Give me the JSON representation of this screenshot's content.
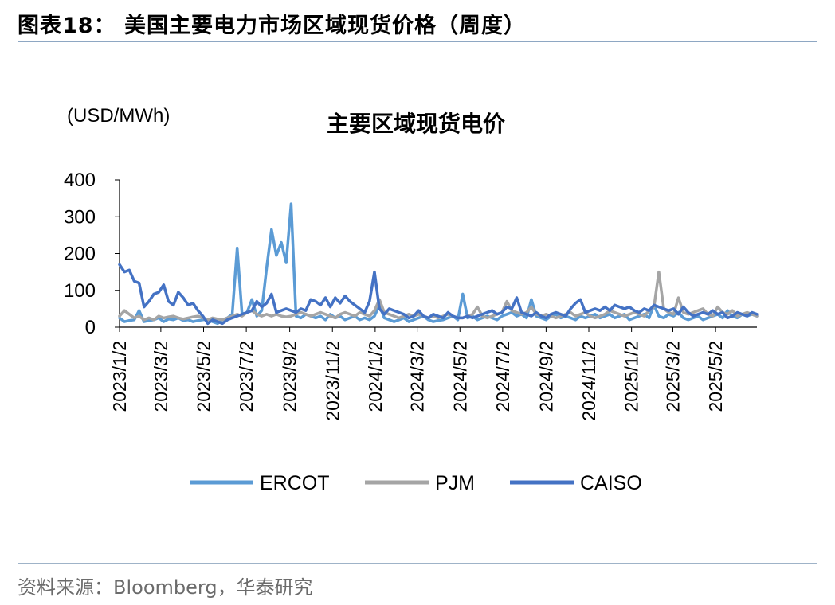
{
  "figure_title": "图表18：  美国主要电力市场区域现货价格（周度）",
  "source": "资料来源：Bloomberg，华泰研究",
  "colors": {
    "ERCOT": "#5b9bd5",
    "PJM": "#a5a5a5",
    "CAISO": "#4472c4"
  },
  "chart_data": {
    "type": "line",
    "title": "主要区域现货电价",
    "unit_label": "(USD/MWh)",
    "ylim": [
      0,
      400
    ],
    "yticks": [
      0,
      100,
      200,
      300,
      400
    ],
    "xlim": [
      "2023/1/2",
      "2025/6/30"
    ],
    "xticks": [
      "2023/1/2",
      "2023/3/2",
      "2023/5/2",
      "2023/7/2",
      "2023/9/2",
      "2023/11/2",
      "2024/1/2",
      "2024/3/2",
      "2024/5/2",
      "2024/7/2",
      "2024/9/2",
      "2024/11/2",
      "2025/1/2",
      "2025/3/2",
      "2025/5/2"
    ],
    "grid": false,
    "legend_position": "bottom",
    "x": [
      "2023/1/2",
      "2023/1/9",
      "2023/1/16",
      "2023/1/23",
      "2023/1/30",
      "2023/2/6",
      "2023/2/13",
      "2023/2/20",
      "2023/2/27",
      "2023/3/6",
      "2023/3/13",
      "2023/3/20",
      "2023/3/27",
      "2023/4/3",
      "2023/4/10",
      "2023/4/17",
      "2023/4/24",
      "2023/5/1",
      "2023/5/8",
      "2023/5/15",
      "2023/5/22",
      "2023/5/29",
      "2023/6/5",
      "2023/6/12",
      "2023/6/19",
      "2023/6/26",
      "2023/7/3",
      "2023/7/10",
      "2023/7/17",
      "2023/7/24",
      "2023/7/31",
      "2023/8/7",
      "2023/8/14",
      "2023/8/21",
      "2023/8/28",
      "2023/9/4",
      "2023/9/11",
      "2023/9/18",
      "2023/9/25",
      "2023/10/2",
      "2023/10/9",
      "2023/10/16",
      "2023/10/23",
      "2023/10/30",
      "2023/11/6",
      "2023/11/13",
      "2023/11/20",
      "2023/11/27",
      "2023/12/4",
      "2023/12/11",
      "2023/12/18",
      "2023/12/25",
      "2024/1/1",
      "2024/1/8",
      "2024/1/15",
      "2024/1/22",
      "2024/1/29",
      "2024/2/5",
      "2024/2/12",
      "2024/2/19",
      "2024/2/26",
      "2024/3/4",
      "2024/3/11",
      "2024/3/18",
      "2024/3/25",
      "2024/4/1",
      "2024/4/8",
      "2024/4/15",
      "2024/4/22",
      "2024/4/29",
      "2024/5/6",
      "2024/5/13",
      "2024/5/20",
      "2024/5/27",
      "2024/6/3",
      "2024/6/10",
      "2024/6/17",
      "2024/6/24",
      "2024/7/1",
      "2024/7/8",
      "2024/7/15",
      "2024/7/22",
      "2024/7/29",
      "2024/8/5",
      "2024/8/12",
      "2024/8/19",
      "2024/8/26",
      "2024/9/2",
      "2024/9/9",
      "2024/9/16",
      "2024/9/23",
      "2024/9/30",
      "2024/10/7",
      "2024/10/14",
      "2024/10/21",
      "2024/10/28",
      "2024/11/4",
      "2024/11/11",
      "2024/11/18",
      "2024/11/25",
      "2024/12/2",
      "2024/12/9",
      "2024/12/16",
      "2024/12/23",
      "2024/12/30",
      "2025/1/6",
      "2025/1/13",
      "2025/1/20",
      "2025/1/27",
      "2025/2/3",
      "2025/2/10",
      "2025/2/17",
      "2025/2/24",
      "2025/3/3",
      "2025/3/10",
      "2025/3/17",
      "2025/3/24",
      "2025/3/31",
      "2025/4/7",
      "2025/4/14",
      "2025/4/21",
      "2025/4/28",
      "2025/5/5",
      "2025/5/12",
      "2025/5/19",
      "2025/5/26",
      "2025/6/2",
      "2025/6/9",
      "2025/6/16",
      "2025/6/23",
      "2025/6/30"
    ],
    "series": [
      {
        "name": "ERCOT",
        "values": [
          25,
          15,
          18,
          20,
          45,
          15,
          18,
          20,
          25,
          15,
          22,
          20,
          25,
          18,
          20,
          15,
          18,
          20,
          22,
          15,
          10,
          20,
          25,
          35,
          215,
          35,
          40,
          75,
          30,
          45,
          160,
          265,
          195,
          230,
          175,
          335,
          30,
          25,
          35,
          30,
          25,
          30,
          20,
          35,
          25,
          30,
          20,
          25,
          30,
          20,
          25,
          20,
          30,
          60,
          25,
          20,
          15,
          20,
          25,
          15,
          20,
          25,
          30,
          20,
          15,
          18,
          20,
          25,
          30,
          20,
          90,
          25,
          30,
          20,
          25,
          30,
          25,
          20,
          30,
          35,
          40,
          30,
          35,
          25,
          75,
          30,
          25,
          20,
          30,
          35,
          25,
          30,
          25,
          20,
          30,
          25,
          30,
          35,
          25,
          30,
          35,
          25,
          30,
          35,
          20,
          25,
          30,
          35,
          25,
          60,
          30,
          25,
          35,
          30,
          40,
          25,
          20,
          25,
          30,
          20,
          25,
          30,
          35,
          25,
          45,
          30,
          25,
          35,
          30,
          35,
          30
        ]
      },
      {
        "name": "PJM",
        "values": [
          30,
          45,
          35,
          25,
          30,
          20,
          25,
          20,
          30,
          25,
          28,
          30,
          25,
          22,
          25,
          28,
          30,
          25,
          20,
          25,
          22,
          20,
          25,
          30,
          35,
          30,
          40,
          45,
          35,
          30,
          35,
          30,
          35,
          30,
          28,
          30,
          35,
          40,
          35,
          30,
          35,
          40,
          35,
          30,
          25,
          35,
          40,
          35,
          30,
          40,
          35,
          30,
          45,
          75,
          40,
          35,
          30,
          25,
          30,
          35,
          30,
          35,
          30,
          25,
          30,
          25,
          30,
          35,
          30,
          25,
          25,
          30,
          35,
          55,
          30,
          25,
          30,
          35,
          40,
          70,
          45,
          40,
          35,
          40,
          55,
          35,
          30,
          35,
          30,
          25,
          30,
          35,
          40,
          30,
          35,
          40,
          30,
          25,
          30,
          35,
          45,
          40,
          35,
          30,
          35,
          40,
          35,
          30,
          45,
          55,
          150,
          50,
          40,
          35,
          80,
          40,
          35,
          40,
          45,
          50,
          35,
          30,
          55,
          40,
          35,
          45,
          30,
          35,
          40,
          35,
          30
        ]
      },
      {
        "name": "CAISO",
        "values": [
          170,
          150,
          155,
          125,
          120,
          55,
          70,
          90,
          95,
          115,
          70,
          60,
          95,
          80,
          60,
          65,
          45,
          30,
          10,
          20,
          15,
          10,
          20,
          25,
          30,
          35,
          40,
          45,
          70,
          55,
          65,
          90,
          40,
          45,
          50,
          45,
          40,
          50,
          45,
          75,
          70,
          60,
          80,
          55,
          80,
          65,
          85,
          70,
          60,
          50,
          40,
          70,
          150,
          50,
          35,
          50,
          45,
          40,
          35,
          25,
          30,
          45,
          30,
          25,
          35,
          30,
          25,
          40,
          30,
          25,
          25,
          30,
          25,
          30,
          35,
          40,
          45,
          35,
          40,
          55,
          50,
          80,
          40,
          35,
          30,
          40,
          30,
          25,
          35,
          40,
          35,
          30,
          50,
          65,
          75,
          40,
          45,
          50,
          45,
          55,
          45,
          60,
          55,
          50,
          55,
          45,
          40,
          50,
          45,
          60,
          55,
          50,
          45,
          50,
          35,
          55,
          40,
          30,
          35,
          40,
          35,
          45,
          35,
          40,
          25,
          30,
          40,
          35,
          30,
          40,
          35
        ]
      }
    ]
  }
}
